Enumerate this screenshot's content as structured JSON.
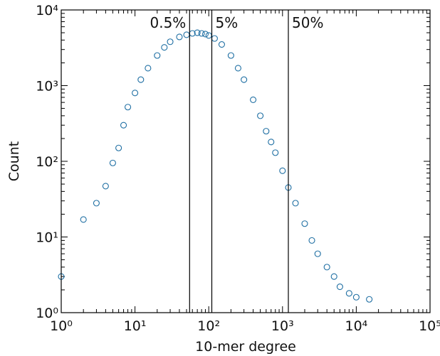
{
  "chart_data": {
    "type": "scatter",
    "title": "",
    "xlabel": "10-mer degree",
    "ylabel": "Count",
    "xscale": "log",
    "yscale": "log",
    "xlim": [
      1,
      100000
    ],
    "ylim": [
      1,
      10000
    ],
    "grid": false,
    "marker": "open-circle",
    "x_tick_labels": [
      "10⁰",
      "10¹",
      "10²",
      "10³",
      "10⁴",
      "10⁵"
    ],
    "y_tick_labels": [
      "10⁰",
      "10¹",
      "10²",
      "10³",
      "10⁴"
    ],
    "colors": {
      "points": "#1f6fa3",
      "lines": "#000000"
    },
    "vlines": [
      {
        "x": 55,
        "label": "0.5%"
      },
      {
        "x": 110,
        "label": "5%"
      },
      {
        "x": 1200,
        "label": "50%"
      }
    ],
    "series": [
      {
        "x": [
          1,
          2,
          3,
          4,
          5,
          6,
          7,
          8,
          10,
          12,
          15,
          20,
          25,
          30,
          40,
          50,
          60,
          70,
          80,
          90,
          100,
          120,
          150,
          200,
          250,
          300,
          400,
          500,
          600,
          700,
          800,
          1000,
          1200,
          1500,
          2000,
          2500,
          3000,
          4000,
          5000,
          6000,
          8000,
          10000,
          15000
        ],
        "y": [
          3,
          17,
          28,
          47,
          95,
          150,
          300,
          520,
          800,
          1200,
          1700,
          2500,
          3200,
          3800,
          4400,
          4700,
          4900,
          5000,
          4900,
          4800,
          4600,
          4200,
          3500,
          2500,
          1700,
          1200,
          650,
          400,
          250,
          180,
          130,
          75,
          45,
          28,
          15,
          9,
          6,
          4,
          3,
          2.2,
          1.8,
          1.6,
          1.5
        ]
      }
    ]
  }
}
